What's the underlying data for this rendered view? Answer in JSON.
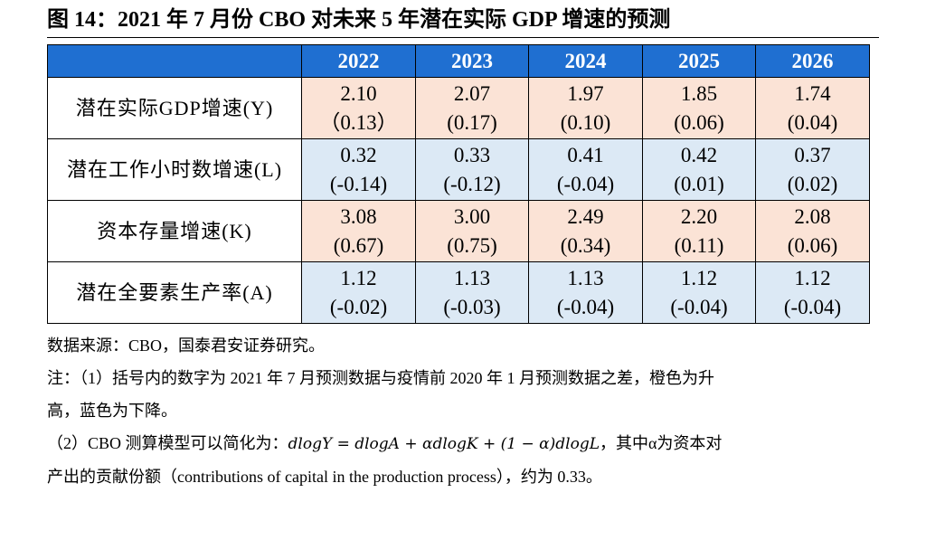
{
  "title": "图 14：2021 年 7 月份 CBO 对未来 5 年潜在实际 GDP 增速的预测",
  "table": {
    "header": [
      "",
      "2022",
      "2023",
      "2024",
      "2025",
      "2026"
    ],
    "rows": [
      {
        "label": "潜在实际GDP增速(Y)",
        "color": "orange",
        "values": [
          "2.10",
          "2.07",
          "1.97",
          "1.85",
          "1.74"
        ],
        "diffs": [
          "（0.13）",
          "(0.17)",
          "(0.10)",
          "(0.06)",
          "(0.04)"
        ]
      },
      {
        "label": "潜在工作小时数增速(L)",
        "color": "blue",
        "values": [
          "0.32",
          "0.33",
          "0.41",
          "0.42",
          "0.37"
        ],
        "diffs": [
          "(-0.14)",
          "(-0.12)",
          "(-0.04)",
          "(0.01)",
          "(0.02)"
        ]
      },
      {
        "label": "资本存量增速(K)",
        "color": "orange",
        "values": [
          "3.08",
          "3.00",
          "2.49",
          "2.20",
          "2.08"
        ],
        "diffs": [
          "(0.67)",
          "(0.75)",
          "(0.34)",
          "(0.11)",
          "(0.06)"
        ]
      },
      {
        "label": "潜在全要素生产率(A)",
        "color": "blue",
        "values": [
          "1.12",
          "1.13",
          "1.13",
          "1.12",
          "1.12"
        ],
        "diffs": [
          "(-0.02)",
          "(-0.03)",
          "(-0.04)",
          "(-0.04)",
          "(-0.04)"
        ]
      }
    ]
  },
  "notes": {
    "source": "数据来源：CBO，国泰君安证券研究。",
    "note1_line1": "注：（1）括号内的数字为 2021 年 7 月预测数据与疫情前 2020 年 1 月预测数据之差，橙色为升",
    "note1_line2": "高，蓝色为下降。",
    "note2_prefix": "（2）CBO 测算模型可以简化为：",
    "note2_formula": "dlogY = dlogA + αdlogK + (1 − α)dlogL",
    "note2_suffix": "，其中α为资本对",
    "note2_line2": "产出的贡献份额（contributions of capital in the production process），约为 0.33。"
  }
}
